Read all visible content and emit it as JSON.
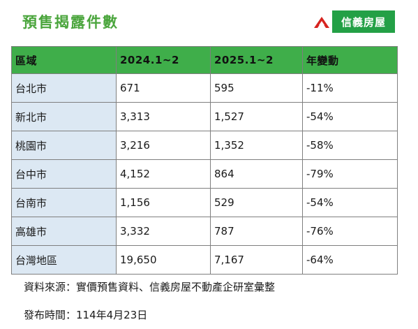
{
  "title": "預售揭露件數",
  "logo": {
    "text": "信義房屋",
    "icon": "sinyi-logo-icon",
    "bg_color": "#23a046",
    "mark_color": "#d7231f"
  },
  "table": {
    "headers": [
      "區域",
      "2024.1~2",
      "2025.1~2",
      "年變動"
    ],
    "rows": [
      [
        "台北市",
        "671",
        "595",
        "-11%"
      ],
      [
        "新北市",
        "3,313",
        "1,527",
        "-54%"
      ],
      [
        "桃園市",
        "3,216",
        "1,352",
        "-58%"
      ],
      [
        "台中市",
        "4,152",
        "864",
        "-79%"
      ],
      [
        "台南市",
        "1,156",
        "529",
        "-54%"
      ],
      [
        "高雄市",
        "3,332",
        "787",
        "-76%"
      ],
      [
        "台灣地區",
        "19,650",
        "7,167",
        "-64%"
      ]
    ],
    "header_color": "#3fae4a",
    "region_cell_color": "#dce8f3"
  },
  "footer": {
    "source": "資料來源：實價預售資料、信義房屋不動產企研室彙整",
    "published": "發布時間：114年4月23日"
  }
}
